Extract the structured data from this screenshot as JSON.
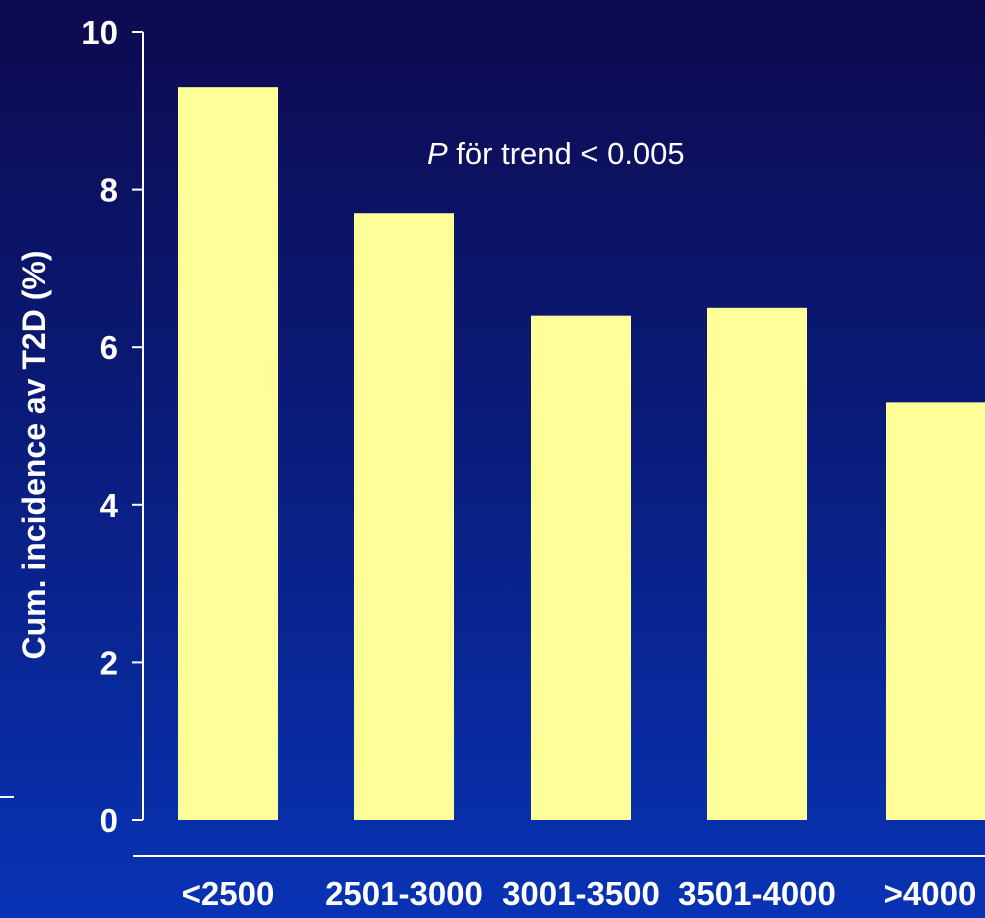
{
  "chart_data": {
    "type": "bar",
    "categories": [
      "<2500",
      "2501-3000",
      "3001-3500",
      "3501-4000",
      ">4000"
    ],
    "values": [
      9.3,
      7.7,
      6.4,
      6.5,
      5.3
    ],
    "ylabel": "Cum. incidence av T2D (%)",
    "xlabel": "",
    "ylim": [
      0,
      10
    ],
    "yticks": [
      "0",
      "2",
      "4",
      "6",
      "8",
      "10"
    ],
    "annotation": {
      "italic": "P",
      "text": " för trend < 0.005"
    },
    "grid": false,
    "legend": "none"
  },
  "colors": {
    "bar": "#ffff99",
    "axis": "#ffffff",
    "text": "#ffffff"
  }
}
